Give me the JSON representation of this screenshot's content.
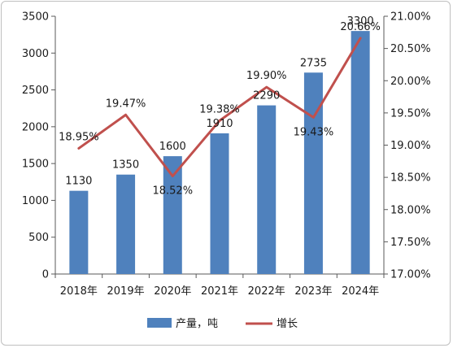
{
  "chart_data": {
    "type": "bar+line",
    "categories": [
      "2018年",
      "2019年",
      "2020年",
      "2021年",
      "2022年",
      "2023年",
      "2024年"
    ],
    "series": [
      {
        "name": "产量，吨",
        "type": "bar",
        "axis": "left",
        "color": "#4f81bd",
        "values": [
          1130,
          1350,
          1600,
          1910,
          2290,
          2735,
          3300
        ],
        "labels": [
          "1130",
          "1350",
          "1600",
          "1910",
          "2290",
          "2735",
          "3300"
        ]
      },
      {
        "name": "增长",
        "type": "line",
        "axis": "right",
        "color": "#c0504d",
        "values": [
          18.95,
          19.47,
          18.52,
          19.38,
          19.9,
          19.43,
          20.66
        ],
        "labels": [
          "18.95%",
          "19.47%",
          "18.52%",
          "19.38%",
          "19.90%",
          "19.43%",
          "20.66%"
        ]
      }
    ],
    "y_left": {
      "ylim": [
        0,
        3500
      ],
      "ticks": [
        0,
        500,
        1000,
        1500,
        2000,
        2500,
        3000,
        3500
      ],
      "tick_labels": [
        "0",
        "500",
        "1000",
        "1500",
        "2000",
        "2500",
        "3000",
        "3500"
      ]
    },
    "y_right": {
      "ylim": [
        17.0,
        21.0
      ],
      "ticks": [
        17.0,
        17.5,
        18.0,
        18.5,
        19.0,
        19.5,
        20.0,
        20.5,
        21.0
      ],
      "tick_labels": [
        "17.00%",
        "17.50%",
        "18.00%",
        "18.50%",
        "19.00%",
        "19.50%",
        "20.00%",
        "20.50%",
        "21.00%"
      ]
    },
    "grid": false,
    "legend_position": "bottom-center"
  }
}
